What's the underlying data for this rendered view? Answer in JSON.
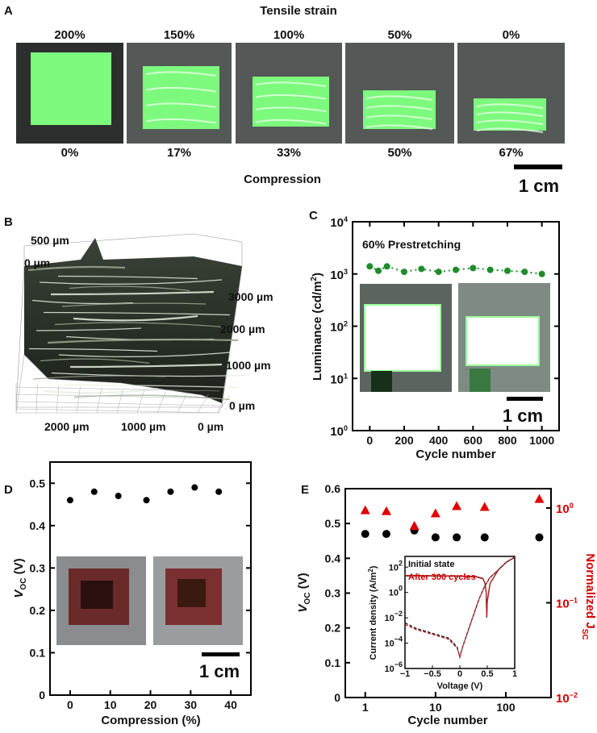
{
  "panel_a": {
    "letter": "A",
    "top_title": "Tensile strain",
    "strain_labels": [
      "200%",
      "150%",
      "100%",
      "50%",
      "0%"
    ],
    "compression_labels": [
      "0%",
      "17%",
      "33%",
      "50%",
      "67%"
    ],
    "bottom_title": "Compression",
    "scale_bar": "1 cm"
  },
  "panel_b": {
    "letter": "B",
    "z_labels": [
      "500 µm",
      "0 µm"
    ],
    "y_labels": [
      "3000 µm",
      "2000 µm",
      "1000 µm",
      "0 µm"
    ],
    "x_labels": [
      "2000 µm",
      "1000 µm",
      "0 µm"
    ]
  },
  "colors": {
    "luminance": "#1e8c2a",
    "jsc": "#e00000",
    "voc": "#000000",
    "green_emission": "#7dfa7d"
  },
  "chart_data": [
    {
      "id": "C",
      "letter": "C",
      "type": "line",
      "annotation": "60%  Prestretching",
      "xlabel": "Cycle number",
      "ylabel": "Luminance (cd/m²)",
      "ylabel_parts": [
        "Luminance (cd/m",
        "2",
        ")"
      ],
      "yscale": "log",
      "ylim": [
        1,
        10000
      ],
      "xlim": [
        -100,
        1100
      ],
      "xticks": [
        0,
        200,
        400,
        600,
        800,
        1000
      ],
      "xtick_labels": [
        "0",
        "200",
        "400",
        "600",
        "800",
        "1000"
      ],
      "yticks": [
        1,
        10,
        100,
        1000,
        10000
      ],
      "ytick_exponents": [
        "0",
        "1",
        "2",
        "3",
        "4"
      ],
      "ytick_base": "10",
      "x": [
        0,
        50,
        100,
        200,
        300,
        400,
        500,
        600,
        700,
        800,
        900,
        1000
      ],
      "y": [
        1400,
        1150,
        1400,
        1100,
        1250,
        1100,
        1200,
        1300,
        1200,
        1150,
        1100,
        1000
      ],
      "marker": "circle",
      "line": "dotted",
      "scale_bar": "1 cm"
    },
    {
      "id": "D",
      "letter": "D",
      "type": "scatter",
      "xlabel": "Compression (%)",
      "ylabel_main": "V",
      "ylabel_sub": "OC",
      "ylabel_unit": " (V)",
      "ylim": [
        0,
        0.55
      ],
      "xlim": [
        -5,
        45
      ],
      "xticks": [
        0,
        10,
        20,
        30,
        40
      ],
      "xtick_labels": [
        "0",
        "10",
        "20",
        "30",
        "40"
      ],
      "yticks": [
        0,
        0.1,
        0.2,
        0.3,
        0.4,
        0.5
      ],
      "ytick_labels": [
        "0",
        "0.1",
        "0.2",
        "0.3",
        "0.4",
        "0.5"
      ],
      "x": [
        0,
        6,
        12,
        19,
        25,
        31,
        37
      ],
      "y": [
        0.46,
        0.48,
        0.47,
        0.46,
        0.48,
        0.49,
        0.48
      ],
      "scale_bar": "1 cm"
    },
    {
      "id": "E",
      "letter": "E",
      "type": "scatter",
      "xlabel": "Cycle number",
      "xscale": "log",
      "xlim": [
        0.52,
        440
      ],
      "xticks": [
        1,
        10,
        100
      ],
      "xtick_labels": [
        "1",
        "10",
        "100"
      ],
      "ylabel_main": "V",
      "ylabel_sub": "OC",
      "ylabel_unit": " (V)",
      "ylim": [
        0,
        0.6
      ],
      "yticks": [
        0,
        0.1,
        0.2,
        0.3,
        0.4,
        0.5,
        0.6
      ],
      "ytick_labels": [
        "0",
        "0.1",
        "0.2",
        "0.3",
        "0.4",
        "0.5",
        "0.6"
      ],
      "y2label_main": "Normalized J",
      "y2label_sub": "SC",
      "y2scale": "log",
      "y2lim": [
        0.01,
        1.6
      ],
      "y2ticks": [
        1,
        0.1,
        0.01
      ],
      "y2tick_exponents": [
        "0",
        "−1",
        "−2"
      ],
      "y2tick_base": "10",
      "series": [
        {
          "axis": "left",
          "marker": "circle",
          "x": [
            1,
            2,
            5,
            10,
            20,
            50,
            300
          ],
          "y": [
            0.47,
            0.47,
            0.48,
            0.46,
            0.46,
            0.46,
            0.46
          ]
        },
        {
          "axis": "right",
          "marker": "triangle",
          "x": [
            1,
            2,
            5,
            10,
            20,
            50,
            300
          ],
          "y": [
            0.95,
            0.93,
            0.65,
            0.88,
            1.05,
            1.03,
            1.25
          ]
        }
      ],
      "inset": {
        "type": "line",
        "xlabel": "Voltage (V)",
        "ylabel": "Current density (A/m²)",
        "ylabel_parts": [
          "Current density (A/m",
          "2",
          ")"
        ],
        "xlim": [
          -1,
          1
        ],
        "yscale": "log",
        "ylim": [
          1e-06,
          700
        ],
        "xticks": [
          -1,
          -0.5,
          0,
          0.5,
          1
        ],
        "xtick_labels": [
          "−1",
          "−0.5",
          "0",
          "0.5",
          "1"
        ],
        "yticks": [
          1e-06,
          0.0001,
          0.01,
          1,
          100
        ],
        "ytick_exponents": [
          "−6",
          "−4",
          "−2",
          "0",
          "2"
        ],
        "ytick_base": "10",
        "legend": [
          "Initial state",
          "After 300 cycles"
        ],
        "curves": [
          {
            "name": "Initial state",
            "condition": "light",
            "style": "solid",
            "color": "#222222",
            "v": [
              -1,
              -0.5,
              0,
              0.3,
              0.42,
              0.46,
              0.48,
              0.49,
              0.5,
              0.55,
              0.7,
              0.85,
              1
            ],
            "j": [
              20,
              20,
              19,
              17,
              12,
              5,
              1,
              0.01,
              0.2,
              5,
              60,
              250,
              600
            ]
          },
          {
            "name": "After 300 cycles",
            "condition": "light",
            "style": "solid",
            "color": "#b52020",
            "v": [
              -1,
              -0.5,
              0,
              0.3,
              0.42,
              0.46,
              0.48,
              0.49,
              0.5,
              0.55,
              0.7,
              0.85,
              1
            ],
            "j": [
              22,
              21,
              20,
              18,
              13,
              5,
              1,
              0.01,
              0.2,
              5,
              60,
              250,
              600
            ]
          },
          {
            "name": "Initial state",
            "condition": "dark",
            "style": "dashed",
            "color": "#222222",
            "v": [
              -1,
              -0.8,
              -0.5,
              -0.2,
              -0.05,
              0,
              0.05,
              0.2,
              0.35,
              0.45,
              0.55,
              0.7,
              0.85,
              1
            ],
            "j": [
              0.004,
              0.0015,
              0.0006,
              0.00025,
              5e-05,
              8e-06,
              5e-05,
              0.004,
              0.3,
              3,
              15,
              60,
              250,
              600
            ]
          },
          {
            "name": "After 300 cycles",
            "condition": "dark",
            "style": "dashed",
            "color": "#b52020",
            "v": [
              -1,
              -0.8,
              -0.5,
              -0.2,
              -0.05,
              0,
              0.05,
              0.2,
              0.35,
              0.45,
              0.55,
              0.7,
              0.85,
              1
            ],
            "j": [
              0.003,
              0.0012,
              0.0005,
              0.0002,
              4e-05,
              8e-06,
              5e-05,
              0.004,
              0.3,
              3,
              15,
              60,
              250,
              600
            ]
          }
        ]
      }
    }
  ]
}
